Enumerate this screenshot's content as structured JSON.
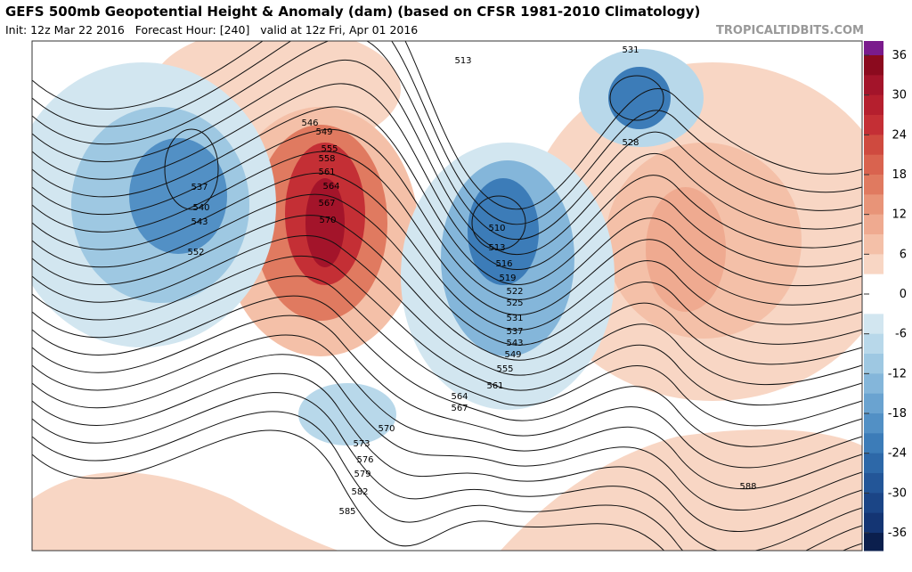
{
  "header": {
    "title": "GEFS 500mb Geopotential Height & Anomaly (dam) (based on CFSR 1981-2010 Climatology)",
    "subtitle": "Init: 12z Mar 22 2016   Forecast Hour: [240]   valid at 12z Fri, Apr 01 2016",
    "site": "TROPICALTIDBITS.COM"
  },
  "colorbar": {
    "ticks": [
      36,
      30,
      24,
      18,
      12,
      6,
      0,
      -6,
      -12,
      -18,
      -24,
      -30,
      -36
    ],
    "colors": [
      "#7a1b8c",
      "#8b0a1e",
      "#a3142a",
      "#b51f2e",
      "#c42f35",
      "#cf4a3f",
      "#d9634f",
      "#e07a60",
      "#e89478",
      "#efaa90",
      "#f4c0a8",
      "#f8d6c4",
      "#ffffff",
      "#ffffff",
      "#d2e6f0",
      "#b8d8ea",
      "#9ec8e2",
      "#84b6da",
      "#6aa3d0",
      "#5290c5",
      "#3c7cb8",
      "#2d68a8",
      "#235698",
      "#1b4586",
      "#143573",
      "#0b1f4d"
    ]
  },
  "map": {
    "contour_labels": [
      513,
      531,
      528,
      546,
      549,
      555,
      558,
      561,
      564,
      567,
      570,
      537,
      540,
      543,
      552,
      510,
      513,
      516,
      519,
      522,
      525,
      531,
      537,
      543,
      549,
      555,
      561,
      564,
      567,
      570,
      573,
      576,
      579,
      582,
      585,
      588
    ]
  }
}
